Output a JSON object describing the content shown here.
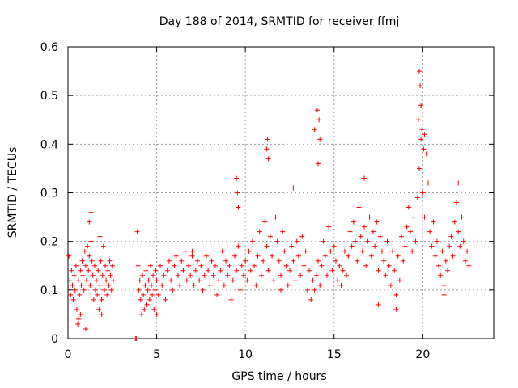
{
  "chart_data": {
    "type": "scatter",
    "title": "Day 188 of 2014, SRMTID for receiver ffmj",
    "xlabel": "GPS time / hours",
    "ylabel": "SRMTID / TECUs",
    "xlim": [
      0,
      24
    ],
    "ylim": [
      0,
      0.6
    ],
    "xticks": [
      0,
      5,
      10,
      15,
      20
    ],
    "yticks": [
      0,
      0.1,
      0.2,
      0.3,
      0.4,
      0.5,
      0.6
    ],
    "xtick_labels": [
      "0",
      "5",
      "10",
      "15",
      "20"
    ],
    "ytick_labels": [
      "0",
      "0.1",
      "0.2",
      "0.3",
      "0.4",
      "0.5",
      "0.6"
    ],
    "grid": true,
    "marker": "plus",
    "series": [
      {
        "name": "SRMTID",
        "color": "#ff0000",
        "x": [
          0.05,
          0.1,
          0.15,
          0.2,
          0.25,
          0.3,
          0.35,
          0.4,
          0.45,
          0.5,
          0.55,
          0.6,
          0.65,
          0.7,
          0.75,
          0.8,
          0.85,
          0.9,
          0.95,
          1.0,
          1.05,
          1.1,
          1.15,
          1.2,
          1.25,
          1.3,
          1.35,
          1.4,
          1.45,
          1.5,
          1.55,
          1.6,
          1.65,
          1.7,
          1.75,
          1.8,
          1.85,
          1.9,
          1.95,
          2.0,
          2.05,
          2.1,
          2.15,
          2.2,
          2.25,
          2.3,
          2.35,
          2.4,
          2.45,
          2.5,
          2.55,
          0.6,
          0.7,
          1.3,
          1.2,
          1.8,
          3.85,
          3.9,
          3.95,
          4.0,
          4.05,
          4.1,
          4.15,
          4.2,
          4.25,
          4.3,
          4.35,
          4.4,
          4.45,
          4.5,
          4.55,
          4.6,
          4.65,
          4.7,
          4.75,
          4.8,
          4.85,
          4.9,
          4.95,
          5.0,
          5.1,
          5.2,
          5.3,
          5.4,
          5.5,
          5.6,
          5.7,
          5.8,
          5.9,
          6.0,
          6.1,
          6.2,
          6.3,
          6.4,
          6.5,
          6.6,
          6.7,
          6.8,
          6.9,
          7.0,
          7.1,
          7.2,
          7.3,
          7.4,
          7.5,
          7.6,
          7.7,
          7.8,
          7.9,
          8.0,
          8.1,
          8.2,
          8.3,
          8.4,
          8.5,
          8.6,
          8.7,
          8.8,
          8.9,
          9.0,
          9.1,
          9.2,
          9.3,
          9.4,
          9.5,
          9.6,
          9.7,
          9.8,
          9.9,
          10.0,
          10.1,
          10.2,
          10.3,
          10.4,
          10.5,
          10.6,
          10.7,
          10.8,
          10.9,
          11.0,
          11.1,
          11.2,
          11.3,
          11.4,
          11.5,
          11.6,
          11.7,
          11.8,
          11.9,
          12.0,
          12.1,
          12.2,
          12.3,
          12.4,
          12.5,
          12.6,
          12.7,
          12.8,
          12.9,
          13.0,
          13.1,
          13.2,
          13.3,
          13.4,
          13.5,
          13.6,
          13.7,
          13.8,
          13.9,
          14.0,
          14.1,
          14.2,
          14.3,
          14.4,
          14.5,
          14.6,
          14.7,
          14.8,
          14.9,
          15.0,
          15.1,
          15.2,
          15.3,
          15.4,
          15.5,
          15.6,
          15.7,
          15.8,
          15.9,
          16.0,
          16.1,
          16.2,
          16.3,
          16.4,
          16.5,
          16.6,
          16.7,
          16.8,
          16.9,
          17.0,
          17.1,
          17.2,
          17.3,
          17.4,
          17.5,
          17.6,
          17.7,
          17.8,
          17.9,
          18.0,
          18.1,
          18.2,
          18.3,
          18.4,
          18.5,
          18.6,
          18.7,
          18.8,
          18.9,
          19.0,
          19.1,
          19.2,
          19.3,
          19.4,
          19.5,
          19.6,
          19.7,
          19.8,
          19.9,
          20.0,
          20.1,
          20.2,
          20.3,
          20.4,
          20.5,
          20.6,
          20.7,
          20.8,
          20.9,
          21.0,
          21.1,
          21.2,
          21.3,
          21.4,
          21.5,
          21.6,
          21.7,
          21.8,
          21.9,
          22.0,
          22.1,
          22.2,
          22.3,
          22.4,
          22.5,
          22.6,
          11.2,
          11.25,
          11.3,
          13.9,
          14.05,
          14.15,
          14.2,
          14.1,
          19.8,
          19.85,
          19.9,
          19.75,
          19.95,
          20.05,
          20.1,
          9.5,
          9.55,
          9.6,
          12.7,
          15.9,
          16.7,
          22.0,
          1.0,
          1.9,
          3.8,
          5.0,
          7.0,
          12.0,
          17.5,
          18.5,
          21.2
        ],
        "y": [
          0.17,
          0.12,
          0.09,
          0.14,
          0.11,
          0.08,
          0.13,
          0.1,
          0.15,
          0.06,
          0.03,
          0.12,
          0.09,
          0.14,
          0.11,
          0.16,
          0.13,
          0.1,
          0.18,
          0.15,
          0.12,
          0.19,
          0.14,
          0.17,
          0.11,
          0.2,
          0.16,
          0.13,
          0.08,
          0.15,
          0.1,
          0.12,
          0.09,
          0.14,
          0.06,
          0.11,
          0.16,
          0.08,
          0.13,
          0.19,
          0.1,
          0.15,
          0.12,
          0.09,
          0.14,
          0.11,
          0.16,
          0.13,
          0.1,
          0.15,
          0.12,
          0.04,
          0.05,
          0.26,
          0.24,
          0.21,
          0.0,
          0.22,
          0.15,
          0.1,
          0.12,
          0.08,
          0.05,
          0.13,
          0.09,
          0.06,
          0.11,
          0.14,
          0.07,
          0.1,
          0.12,
          0.08,
          0.15,
          0.11,
          0.09,
          0.13,
          0.06,
          0.1,
          0.14,
          0.12,
          0.09,
          0.15,
          0.11,
          0.13,
          0.08,
          0.14,
          0.16,
          0.12,
          0.1,
          0.15,
          0.17,
          0.13,
          0.11,
          0.16,
          0.14,
          0.18,
          0.12,
          0.15,
          0.13,
          0.17,
          0.11,
          0.14,
          0.16,
          0.12,
          0.15,
          0.1,
          0.13,
          0.17,
          0.14,
          0.11,
          0.16,
          0.13,
          0.15,
          0.09,
          0.12,
          0.14,
          0.18,
          0.11,
          0.16,
          0.13,
          0.15,
          0.08,
          0.12,
          0.17,
          0.14,
          0.19,
          0.1,
          0.15,
          0.13,
          0.16,
          0.12,
          0.18,
          0.14,
          0.2,
          0.15,
          0.11,
          0.17,
          0.22,
          0.13,
          0.16,
          0.24,
          0.19,
          0.14,
          0.21,
          0.17,
          0.12,
          0.25,
          0.2,
          0.16,
          0.13,
          0.22,
          0.18,
          0.15,
          0.11,
          0.14,
          0.19,
          0.16,
          0.12,
          0.2,
          0.17,
          0.13,
          0.21,
          0.15,
          0.18,
          0.1,
          0.14,
          0.08,
          0.12,
          0.1,
          0.13,
          0.16,
          0.11,
          0.15,
          0.2,
          0.17,
          0.13,
          0.23,
          0.18,
          0.14,
          0.19,
          0.16,
          0.12,
          0.15,
          0.11,
          0.14,
          0.18,
          0.13,
          0.17,
          0.22,
          0.19,
          0.24,
          0.2,
          0.16,
          0.27,
          0.21,
          0.18,
          0.23,
          0.15,
          0.2,
          0.25,
          0.17,
          0.22,
          0.19,
          0.24,
          0.14,
          0.21,
          0.18,
          0.16,
          0.13,
          0.2,
          0.15,
          0.11,
          0.18,
          0.14,
          0.09,
          0.17,
          0.12,
          0.21,
          0.16,
          0.19,
          0.23,
          0.27,
          0.22,
          0.18,
          0.25,
          0.2,
          0.29,
          0.35,
          0.41,
          0.3,
          0.25,
          0.38,
          0.32,
          0.22,
          0.19,
          0.24,
          0.17,
          0.2,
          0.15,
          0.13,
          0.18,
          0.11,
          0.16,
          0.14,
          0.19,
          0.21,
          0.17,
          0.24,
          0.28,
          0.22,
          0.19,
          0.25,
          0.2,
          0.16,
          0.18,
          0.15,
          0.39,
          0.41,
          0.37,
          0.43,
          0.47,
          0.45,
          0.41,
          0.36,
          0.55,
          0.52,
          0.48,
          0.45,
          0.43,
          0.39,
          0.42,
          0.33,
          0.3,
          0.27,
          0.31,
          0.32,
          0.33,
          0.32,
          0.02,
          0.05,
          0.0,
          0.05,
          0.18,
          0.1,
          0.07,
          0.06,
          0.09
        ]
      }
    ]
  }
}
